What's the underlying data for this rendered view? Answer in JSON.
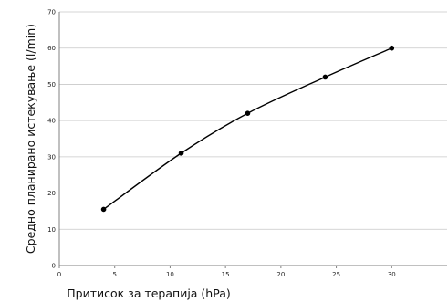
{
  "chart_data": {
    "type": "line",
    "title": "",
    "xlabel": "Притисок за терапија (hPa)",
    "ylabel": "Средно планирано истекување (l/min)",
    "xlim": [
      0,
      35
    ],
    "ylim": [
      0,
      70
    ],
    "xticks": [
      0,
      5,
      10,
      15,
      20,
      25,
      30
    ],
    "yticks": [
      0,
      10,
      20,
      30,
      40,
      50,
      60,
      70
    ],
    "grid": "horizontal",
    "legend": "none",
    "series": [
      {
        "name": "",
        "x": [
          4,
          11,
          17,
          24,
          30
        ],
        "y": [
          15.5,
          31,
          42,
          52,
          60
        ],
        "color": "#000000",
        "markers": true,
        "smooth": true
      }
    ]
  }
}
